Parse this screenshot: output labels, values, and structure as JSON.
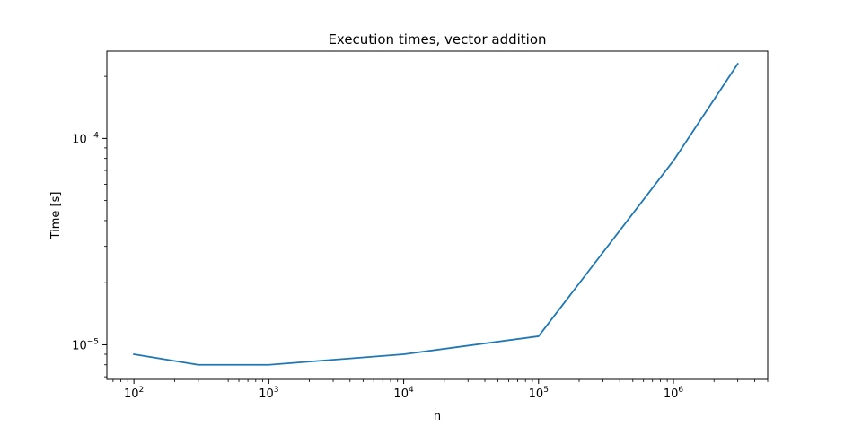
{
  "chart_data": {
    "type": "line",
    "title": "Execution times, vector addition",
    "xlabel": "n",
    "ylabel": "Time [s]",
    "xscale": "log",
    "yscale": "log",
    "xlim": [
      63,
      5000000
    ],
    "ylim": [
      6.8e-06,
      0.000265
    ],
    "grid": false,
    "legend": "none",
    "x_ticks": [
      {
        "value": 100,
        "base": "10",
        "exp": "2"
      },
      {
        "value": 1000,
        "base": "10",
        "exp": "3"
      },
      {
        "value": 10000,
        "base": "10",
        "exp": "4"
      },
      {
        "value": 100000,
        "base": "10",
        "exp": "5"
      },
      {
        "value": 1000000,
        "base": "10",
        "exp": "6"
      }
    ],
    "y_ticks": [
      {
        "value": 1e-05,
        "base": "10",
        "exp": "−5"
      },
      {
        "value": 0.0001,
        "base": "10",
        "exp": "−4"
      }
    ],
    "series": [
      {
        "color": "#1f77b4",
        "x": [
          100,
          300,
          1000,
          10000,
          100000,
          1000000,
          3000000
        ],
        "y": [
          9e-06,
          8e-06,
          8e-06,
          9e-06,
          1.1e-05,
          7.8e-05,
          0.00023
        ]
      }
    ]
  }
}
